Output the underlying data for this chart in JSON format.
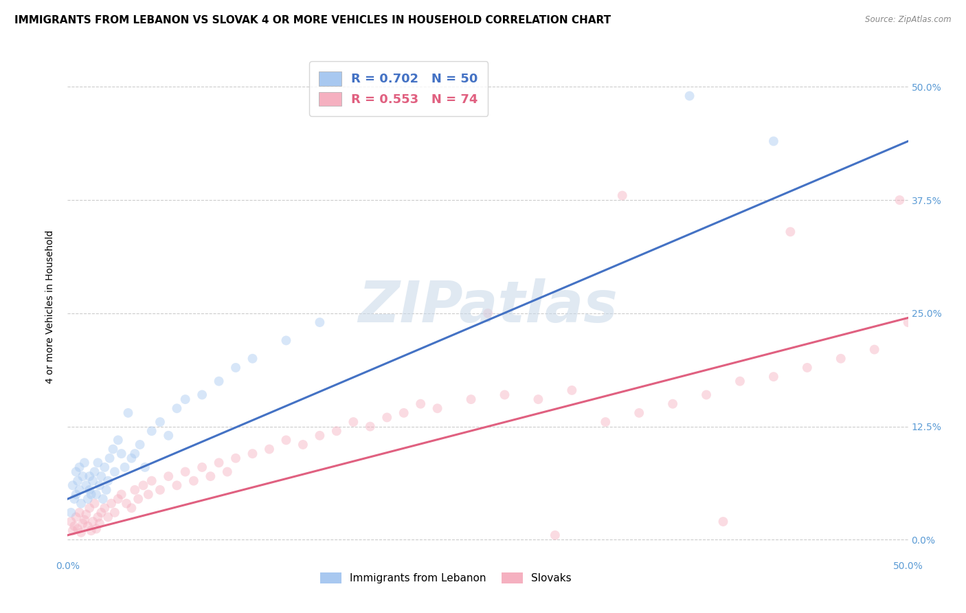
{
  "title": "IMMIGRANTS FROM LEBANON VS SLOVAK 4 OR MORE VEHICLES IN HOUSEHOLD CORRELATION CHART",
  "source": "Source: ZipAtlas.com",
  "ylabel": "4 or more Vehicles in Household",
  "ytick_labels": [
    "0.0%",
    "12.5%",
    "25.0%",
    "37.5%",
    "50.0%"
  ],
  "xlim": [
    0.0,
    0.5
  ],
  "ylim": [
    -0.02,
    0.535
  ],
  "legend_blue_r": "R = 0.702",
  "legend_blue_n": "N = 50",
  "legend_pink_r": "R = 0.553",
  "legend_pink_n": "N = 74",
  "blue_color": "#A8C8F0",
  "pink_color": "#F5B0C0",
  "blue_line_color": "#4472C4",
  "pink_line_color": "#E06080",
  "watermark": "ZIPatlas",
  "blue_scatter_x": [
    0.002,
    0.003,
    0.004,
    0.005,
    0.005,
    0.006,
    0.007,
    0.007,
    0.008,
    0.009,
    0.01,
    0.011,
    0.012,
    0.013,
    0.013,
    0.014,
    0.015,
    0.016,
    0.017,
    0.018,
    0.019,
    0.02,
    0.021,
    0.022,
    0.023,
    0.024,
    0.025,
    0.027,
    0.028,
    0.03,
    0.032,
    0.034,
    0.036,
    0.038,
    0.04,
    0.043,
    0.046,
    0.05,
    0.055,
    0.06,
    0.065,
    0.07,
    0.08,
    0.09,
    0.1,
    0.11,
    0.13,
    0.15,
    0.37,
    0.42
  ],
  "blue_scatter_y": [
    0.03,
    0.06,
    0.045,
    0.075,
    0.05,
    0.065,
    0.08,
    0.055,
    0.04,
    0.07,
    0.085,
    0.06,
    0.045,
    0.055,
    0.07,
    0.05,
    0.065,
    0.075,
    0.05,
    0.085,
    0.06,
    0.07,
    0.045,
    0.08,
    0.055,
    0.065,
    0.09,
    0.1,
    0.075,
    0.11,
    0.095,
    0.08,
    0.14,
    0.09,
    0.095,
    0.105,
    0.08,
    0.12,
    0.13,
    0.115,
    0.145,
    0.155,
    0.16,
    0.175,
    0.19,
    0.2,
    0.22,
    0.24,
    0.49,
    0.44
  ],
  "pink_scatter_x": [
    0.002,
    0.003,
    0.004,
    0.005,
    0.006,
    0.007,
    0.008,
    0.009,
    0.01,
    0.011,
    0.012,
    0.013,
    0.014,
    0.015,
    0.016,
    0.017,
    0.018,
    0.019,
    0.02,
    0.022,
    0.024,
    0.026,
    0.028,
    0.03,
    0.032,
    0.035,
    0.038,
    0.04,
    0.042,
    0.045,
    0.048,
    0.05,
    0.055,
    0.06,
    0.065,
    0.07,
    0.075,
    0.08,
    0.085,
    0.09,
    0.095,
    0.1,
    0.11,
    0.12,
    0.13,
    0.14,
    0.15,
    0.16,
    0.17,
    0.18,
    0.19,
    0.2,
    0.21,
    0.22,
    0.24,
    0.26,
    0.28,
    0.3,
    0.32,
    0.34,
    0.36,
    0.38,
    0.4,
    0.42,
    0.44,
    0.46,
    0.48,
    0.495,
    0.33,
    0.29,
    0.25,
    0.43,
    0.39,
    0.5
  ],
  "pink_scatter_y": [
    0.02,
    0.01,
    0.015,
    0.025,
    0.012,
    0.03,
    0.008,
    0.018,
    0.022,
    0.028,
    0.015,
    0.035,
    0.01,
    0.02,
    0.04,
    0.012,
    0.025,
    0.018,
    0.03,
    0.035,
    0.025,
    0.04,
    0.03,
    0.045,
    0.05,
    0.04,
    0.035,
    0.055,
    0.045,
    0.06,
    0.05,
    0.065,
    0.055,
    0.07,
    0.06,
    0.075,
    0.065,
    0.08,
    0.07,
    0.085,
    0.075,
    0.09,
    0.095,
    0.1,
    0.11,
    0.105,
    0.115,
    0.12,
    0.13,
    0.125,
    0.135,
    0.14,
    0.15,
    0.145,
    0.155,
    0.16,
    0.155,
    0.165,
    0.13,
    0.14,
    0.15,
    0.16,
    0.175,
    0.18,
    0.19,
    0.2,
    0.21,
    0.375,
    0.38,
    0.005,
    0.25,
    0.34,
    0.02,
    0.24
  ],
  "blue_line_y_start": 0.045,
  "blue_line_y_end": 0.44,
  "pink_line_y_start": 0.005,
  "pink_line_y_end": 0.245,
  "background_color": "#FFFFFF",
  "grid_color": "#CCCCCC",
  "title_fontsize": 11,
  "axis_fontsize": 10,
  "scatter_size": 100,
  "scatter_alpha": 0.45,
  "tick_color": "#5B9BD5"
}
